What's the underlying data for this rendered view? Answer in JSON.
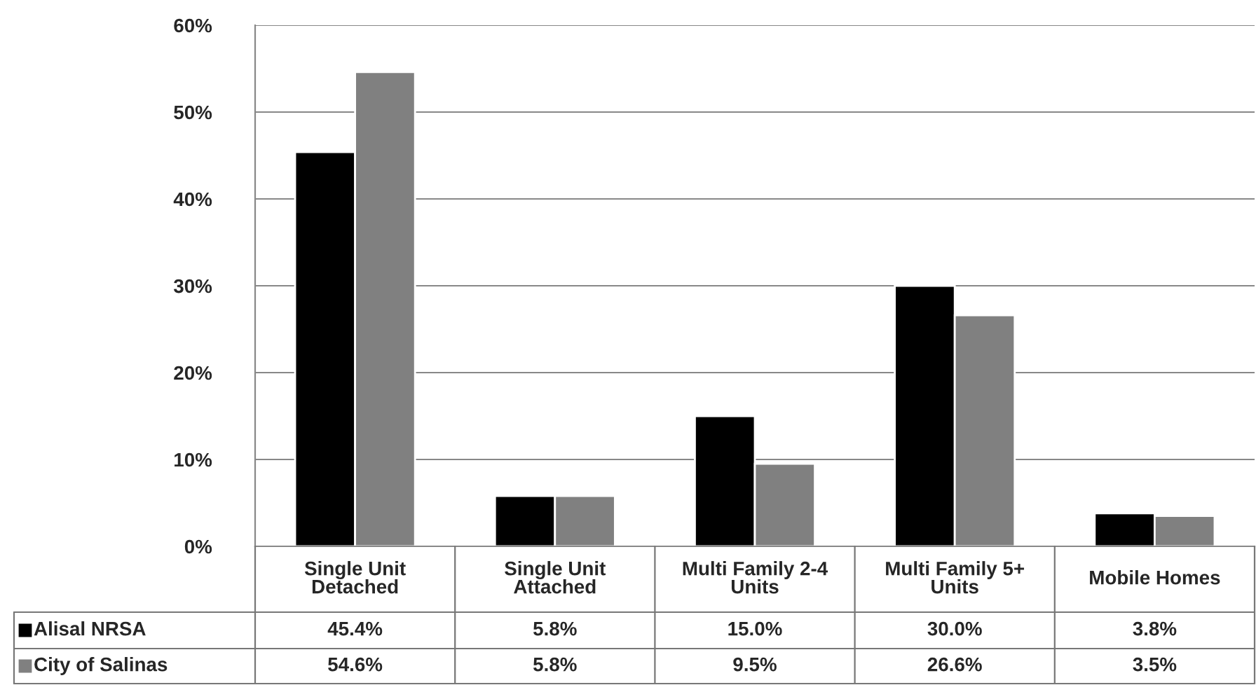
{
  "chart_data": {
    "type": "bar",
    "categories": [
      "Single Unit\nDetached",
      "Single Unit\nAttached",
      "Multi Family 2-4\nUnits",
      "Multi Family 5+\nUnits",
      "Mobile Homes"
    ],
    "series": [
      {
        "name": "Alisal NRSA",
        "color": "#000000",
        "values": [
          45.4,
          5.8,
          15.0,
          30.0,
          3.8
        ],
        "value_labels": [
          "45.4%",
          "5.8%",
          "15.0%",
          "30.0%",
          "3.8%"
        ]
      },
      {
        "name": "City of Salinas",
        "color": "#808080",
        "values": [
          54.6,
          5.8,
          9.5,
          26.6,
          3.5
        ],
        "value_labels": [
          "54.6%",
          "5.8%",
          "9.5%",
          "26.6%",
          "3.5%"
        ]
      }
    ],
    "ylim": [
      0,
      60
    ],
    "yticks": [
      {
        "value": 0,
        "label": "0%"
      },
      {
        "value": 10,
        "label": "10%"
      },
      {
        "value": 20,
        "label": "20%"
      },
      {
        "value": 30,
        "label": "30%"
      },
      {
        "value": 40,
        "label": "40%"
      },
      {
        "value": 50,
        "label": "50%"
      },
      {
        "value": 60,
        "label": "60%"
      }
    ],
    "grid": "y",
    "legend": "bottom"
  }
}
